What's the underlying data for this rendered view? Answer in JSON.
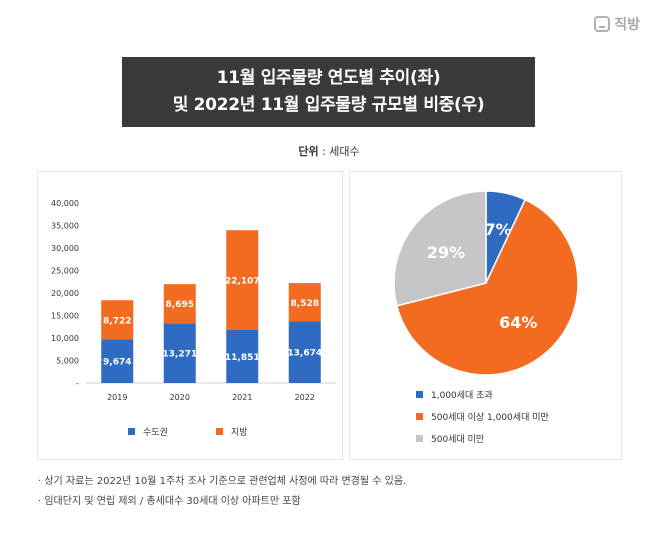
{
  "brand": "직방",
  "title_line1": "11월 입주물량 연도별 추이(좌)",
  "title_line2": "및 2022년 11월 입주물량 규모별 비중(우)",
  "unit_label": "단위",
  "unit_value": " : 세대수",
  "colors": {
    "blue": "#2f6bc0",
    "orange": "#f26b21",
    "gray": "#c6c6c8",
    "title_bg": "#3a3a3a"
  },
  "chart_data": [
    {
      "type": "bar",
      "stacked": true,
      "categories": [
        "2019",
        "2020",
        "2021",
        "2022"
      ],
      "series": [
        {
          "name": "수도권",
          "values": [
            9674,
            13271,
            11851,
            13674
          ],
          "labels": [
            "9,674",
            "13,271",
            "11,851",
            "13,674"
          ]
        },
        {
          "name": "지방",
          "values": [
            8722,
            8695,
            22107,
            8528
          ],
          "labels": [
            "8,722",
            "8,695",
            "22,107",
            "8,528"
          ]
        }
      ],
      "ylim": [
        0,
        40000
      ],
      "yticks": [
        "40,000",
        "35,000",
        "30,000",
        "25,000",
        "20,000",
        "15,000",
        "10,000",
        "5,000",
        "-"
      ],
      "grid": false,
      "legend": "bottom"
    },
    {
      "type": "pie",
      "categories": [
        "1,000세대 초과",
        "500세대 이상 1,000세대 미만",
        "500세대 미만"
      ],
      "values": [
        7,
        64,
        29
      ],
      "labels": [
        "7%",
        "64%",
        "29%"
      ],
      "legend": "bottom"
    }
  ],
  "notes": [
    "상기 자료는 2022년 10월 1주차 조사 기준으로 관련업체 사정에 따라 변경될 수 있음.",
    "임대단지 및 연립 제외 / 총세대수 30세대 이상 아파트만 포함"
  ]
}
